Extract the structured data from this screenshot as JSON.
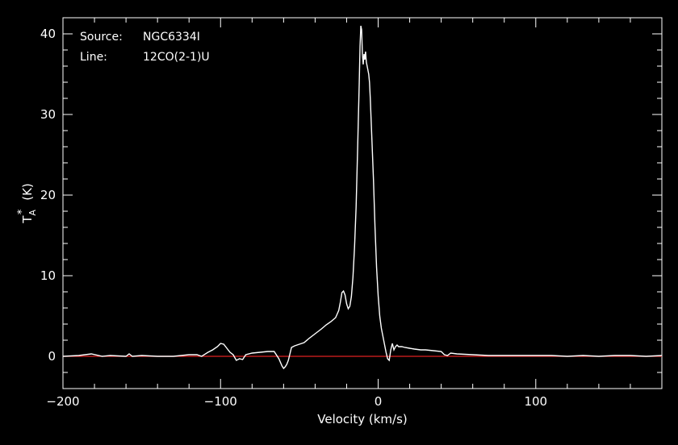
{
  "chart_data": {
    "type": "line",
    "xlabel": "Velocity (km/s)",
    "ylabel": "T_A* (K)",
    "ylabel_parts": {
      "main": "T",
      "sub": "A",
      "sup": "*",
      "unit": "(K)"
    },
    "xlim": [
      -200,
      180
    ],
    "ylim": [
      -4,
      42
    ],
    "x_ticks": [
      -200,
      -100,
      0,
      100
    ],
    "x_tick_labels": [
      "−200",
      "−100",
      "0",
      "100"
    ],
    "y_ticks": [
      0,
      10,
      20,
      30,
      40
    ],
    "y_tick_labels": [
      "0",
      "10",
      "20",
      "30",
      "40"
    ],
    "annotations": [
      {
        "key": "Source:",
        "value": "NGC6334I"
      },
      {
        "key": "Line:",
        "value": "12CO(2-1)U"
      }
    ],
    "baseline": {
      "y": 0,
      "color": "#e02020"
    },
    "series": [
      {
        "color": "#ffffff",
        "x": [
          -200,
          -190,
          -182,
          -175,
          -170,
          -160,
          -158,
          -156,
          -150,
          -140,
          -130,
          -120,
          -115,
          -112,
          -108,
          -105,
          -102,
          -100,
          -98,
          -96,
          -94,
          -92,
          -90,
          -88,
          -86,
          -84,
          -80,
          -75,
          -70,
          -66,
          -63,
          -61,
          -60,
          -59,
          -58,
          -57,
          -55,
          -53,
          -50,
          -47,
          -44,
          -40,
          -36,
          -33,
          -30,
          -27,
          -25,
          -24,
          -23,
          -22,
          -21,
          -20,
          -19,
          -18,
          -17,
          -16,
          -15,
          -14,
          -13,
          -12,
          -11.5,
          -11,
          -10.5,
          -10,
          -9.5,
          -9,
          -8.5,
          -8,
          -7.5,
          -7,
          -6.5,
          -6,
          -5.5,
          -5,
          -4,
          -3,
          -2,
          -1,
          0,
          1,
          2,
          3,
          4,
          5,
          6,
          7,
          8,
          9,
          10,
          11,
          12,
          13,
          15,
          17,
          20,
          23,
          27,
          30,
          35,
          40,
          42,
          44,
          46,
          50,
          60,
          70,
          80,
          90,
          100,
          110,
          120,
          130,
          140,
          150,
          160,
          170,
          180
        ],
        "y": [
          0,
          0.1,
          0.3,
          0,
          0.1,
          0,
          0.3,
          0,
          0.1,
          0,
          0,
          0.2,
          0.2,
          0,
          0.5,
          0.8,
          1.2,
          1.6,
          1.5,
          1,
          0.5,
          0.2,
          -0.5,
          -0.3,
          -0.4,
          0.2,
          0.4,
          0.5,
          0.6,
          0.6,
          -0.3,
          -1.2,
          -1.5,
          -1.3,
          -1,
          -0.5,
          1.1,
          1.3,
          1.5,
          1.7,
          2.2,
          2.8,
          3.4,
          3.9,
          4.3,
          4.8,
          5.7,
          6.7,
          7.9,
          8.1,
          7.6,
          6.5,
          5.9,
          6.2,
          7.4,
          9.8,
          13.5,
          18.5,
          26,
          34,
          38.5,
          41,
          40.5,
          37.5,
          36.2,
          37.5,
          36.8,
          37.8,
          36.5,
          36,
          35.5,
          35,
          34,
          32,
          27,
          22,
          16,
          11,
          7.5,
          5,
          3.5,
          2.5,
          1.5,
          0.5,
          -0.3,
          -0.5,
          0.8,
          1.6,
          0.8,
          1.2,
          1.4,
          1.2,
          1.2,
          1.1,
          1,
          0.9,
          0.8,
          0.8,
          0.7,
          0.6,
          0.2,
          0.1,
          0.4,
          0.3,
          0.2,
          0.1,
          0.1,
          0.1,
          0.1,
          0.1,
          0,
          0.1,
          0,
          0.1,
          0.1,
          0,
          0.1
        ]
      }
    ]
  }
}
